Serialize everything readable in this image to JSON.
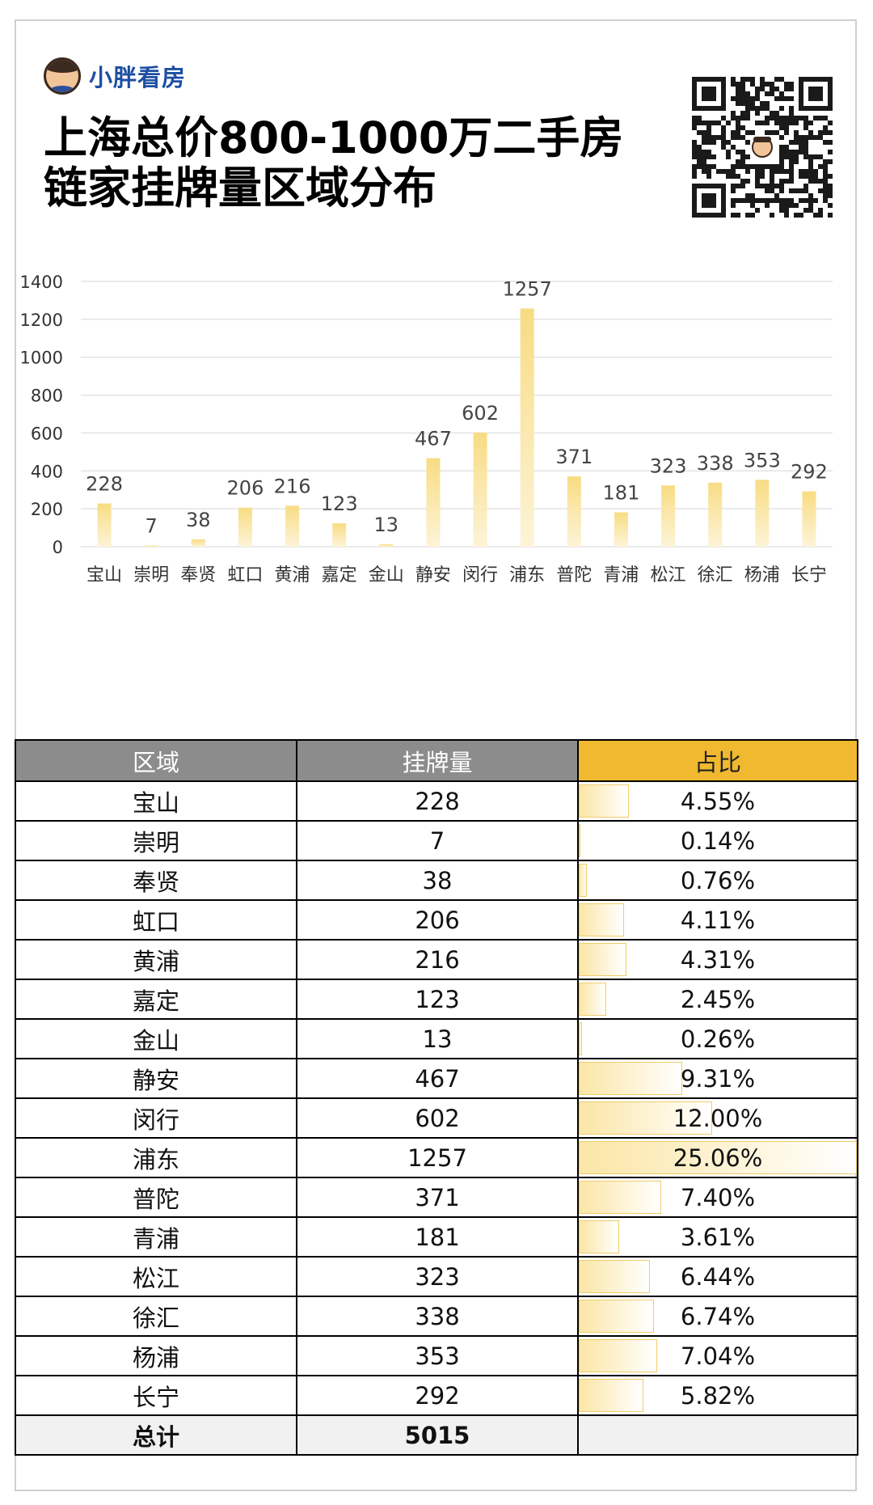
{
  "brand": {
    "name": "小胖看房",
    "logo_icon": "cartoon-boy-avatar-icon"
  },
  "title": "上海总价800-1000万二手房\n链家挂牌量区域分布",
  "qr_icon": "qr-code-icon",
  "colors": {
    "bar_top": "#f8dc83",
    "bar_bottom": "#fdf4d8",
    "header_gray": "#8c8c8c",
    "header_gold": "#f0b92f",
    "brand_blue": "#1d4fa3"
  },
  "chart_data": {
    "type": "bar",
    "categories": [
      "宝山",
      "崇明",
      "奉贤",
      "虹口",
      "黄浦",
      "嘉定",
      "金山",
      "静安",
      "闵行",
      "浦东",
      "普陀",
      "青浦",
      "松江",
      "徐汇",
      "杨浦",
      "长宁"
    ],
    "values": [
      228,
      7,
      38,
      206,
      216,
      123,
      13,
      467,
      602,
      1257,
      371,
      181,
      323,
      338,
      353,
      292
    ],
    "ylim": [
      0,
      1400
    ],
    "yticks": [
      0,
      200,
      400,
      600,
      800,
      1000,
      1200,
      1400
    ],
    "grid": true,
    "data_labels": true
  },
  "table": {
    "headers": [
      "区域",
      "挂牌量",
      "占比"
    ],
    "rows": [
      {
        "region": "宝山",
        "count": "228",
        "pct": "4.55%",
        "share": 4.55
      },
      {
        "region": "崇明",
        "count": "7",
        "pct": "0.14%",
        "share": 0.14
      },
      {
        "region": "奉贤",
        "count": "38",
        "pct": "0.76%",
        "share": 0.76
      },
      {
        "region": "虹口",
        "count": "206",
        "pct": "4.11%",
        "share": 4.11
      },
      {
        "region": "黄浦",
        "count": "216",
        "pct": "4.31%",
        "share": 4.31
      },
      {
        "region": "嘉定",
        "count": "123",
        "pct": "2.45%",
        "share": 2.45
      },
      {
        "region": "金山",
        "count": "13",
        "pct": "0.26%",
        "share": 0.26
      },
      {
        "region": "静安",
        "count": "467",
        "pct": "9.31%",
        "share": 9.31
      },
      {
        "region": "闵行",
        "count": "602",
        "pct": "12.00%",
        "share": 12.0
      },
      {
        "region": "浦东",
        "count": "1257",
        "pct": "25.06%",
        "share": 25.06
      },
      {
        "region": "普陀",
        "count": "371",
        "pct": "7.40%",
        "share": 7.4
      },
      {
        "region": "青浦",
        "count": "181",
        "pct": "3.61%",
        "share": 3.61
      },
      {
        "region": "松江",
        "count": "323",
        "pct": "6.44%",
        "share": 6.44
      },
      {
        "region": "徐汇",
        "count": "338",
        "pct": "6.74%",
        "share": 6.74
      },
      {
        "region": "杨浦",
        "count": "353",
        "pct": "7.04%",
        "share": 7.04
      },
      {
        "region": "长宁",
        "count": "292",
        "pct": "5.82%",
        "share": 5.82
      }
    ],
    "total": {
      "label": "总计",
      "count": "5015"
    }
  }
}
